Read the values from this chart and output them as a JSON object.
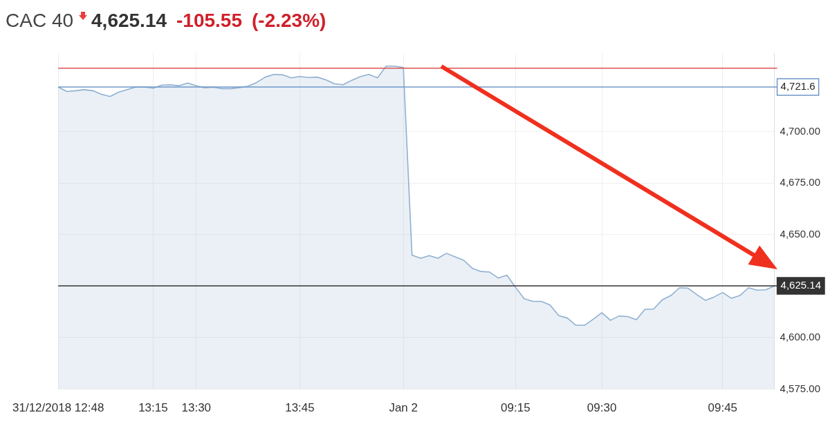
{
  "chart_data": {
    "type": "area",
    "title": "CAC 40",
    "subtitle": "4,625.14",
    "annotations": [
      "-105.55",
      "(-2.23%)"
    ],
    "categories": [
      "31/12/2018 12:48",
      null,
      null,
      null,
      null,
      null,
      null,
      null,
      null,
      null,
      null,
      "13:15",
      null,
      null,
      null,
      null,
      "13:30",
      null,
      null,
      null,
      null,
      null,
      null,
      null,
      null,
      null,
      null,
      null,
      "13:45",
      null,
      null,
      null,
      null,
      null,
      null,
      null,
      null,
      null,
      null,
      null,
      "Jan 2",
      null,
      null,
      null,
      null,
      null,
      null,
      null,
      null,
      null,
      null,
      null,
      null,
      "09:15",
      null,
      null,
      null,
      null,
      null,
      null,
      null,
      null,
      null,
      "09:30",
      null,
      null,
      null,
      null,
      null,
      null,
      null,
      null,
      null,
      null,
      null,
      null,
      null,
      "09:45",
      null,
      null,
      null,
      null,
      null,
      null
    ],
    "series": [
      {
        "color": "#8fb0d0",
        "values": [
          4721.6,
          4719.4,
          4719.8,
          4720.3,
          4719.8,
          4718.1,
          4717.0,
          4719.1,
          4720.3,
          4721.6,
          4721.6,
          4721.0,
          4722.5,
          4722.7,
          4722.2,
          4723.5,
          4722.2,
          4721.2,
          4721.5,
          4720.8,
          4720.8,
          4721.3,
          4722.0,
          4723.8,
          4726.4,
          4727.7,
          4727.5,
          4726.0,
          4726.7,
          4726.2,
          4726.4,
          4725.1,
          4723.2,
          4722.7,
          4724.8,
          4726.6,
          4727.7,
          4726.0,
          4731.7,
          4731.7,
          4731.0,
          4640.0,
          4638.5,
          4639.8,
          4638.5,
          4640.9,
          4639.2,
          4637.5,
          4633.6,
          4632.1,
          4631.8,
          4628.9,
          4630.3,
          4624.4,
          4618.9,
          4617.6,
          4617.6,
          4615.8,
          4610.7,
          4609.5,
          4606.0,
          4606.0,
          4608.9,
          4612.1,
          4608.4,
          4610.5,
          4610.2,
          4608.7,
          4613.7,
          4613.9,
          4618.3,
          4620.4,
          4624.2,
          4624.0,
          4620.9,
          4618.1,
          4619.7,
          4621.9,
          4619.1,
          4620.4,
          4624.2,
          4623.0,
          4623.2,
          4625.1
        ]
      }
    ],
    "ylim": [
      4575,
      4738
    ],
    "yticks": [
      {
        "value": 4575,
        "label": "4,575.00"
      },
      {
        "value": 4600,
        "label": "4,600.00"
      },
      {
        "value": 4650,
        "label": "4,650.00"
      },
      {
        "value": 4675,
        "label": "4,675.00"
      },
      {
        "value": 4700,
        "label": "4,700.00"
      }
    ],
    "ref_lines": [
      {
        "axis": "y",
        "value": 4730.69,
        "label": null,
        "color": "#d9534f"
      },
      {
        "axis": "y",
        "value": 4721.6,
        "label": "4,721.6",
        "color": "#6f97c9"
      },
      {
        "axis": "y",
        "value": 4625.14,
        "label": "4,625.14",
        "color": "#333333"
      }
    ],
    "grid": true,
    "legend": false
  }
}
